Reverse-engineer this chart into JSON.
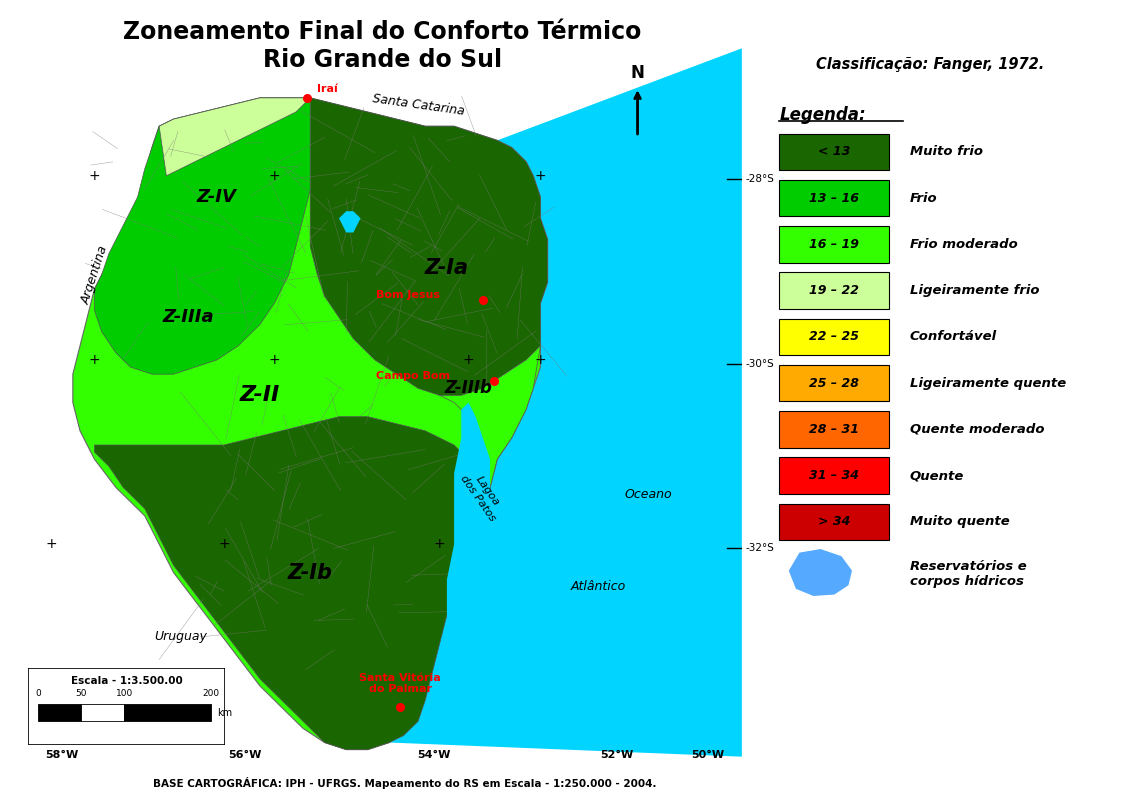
{
  "title_line1": "Zoneamento Final do Conforto Térmico",
  "title_line2": "Rio Grande do Sul",
  "title_fontsize": 17,
  "background_color": "#ffffff",
  "map_bg_color": "#c8c8c8",
  "ocean_color": "#00d4ff",
  "classification_title": "Classificação: Fanger, 1972.",
  "legend_title": "Legenda:",
  "legend_items": [
    {
      "range": "< 13",
      "color": "#1a6600",
      "label": "Muito frio"
    },
    {
      "range": "13 – 16",
      "color": "#00cc00",
      "label": "Frio"
    },
    {
      "range": "16 – 19",
      "color": "#33ff00",
      "label": "Frio moderado"
    },
    {
      "range": "19 – 22",
      "color": "#ccff99",
      "label": "Ligeiramente frio"
    },
    {
      "range": "22 – 25",
      "color": "#ffff00",
      "label": "Confortável"
    },
    {
      "range": "25 – 28",
      "color": "#ffaa00",
      "label": "Ligeiramente quente"
    },
    {
      "range": "28 – 31",
      "color": "#ff6600",
      "label": "Quente moderado"
    },
    {
      "range": "31 – 34",
      "color": "#ff0000",
      "label": "Quente"
    },
    {
      "range": "> 34",
      "color": "#cc0000",
      "label": "Muito quente"
    }
  ],
  "reserv_label": "Reservatórios e\ncorpos hídricos",
  "reserv_color": "#55aaff",
  "scale_text": "Escala - 1:3.500.00",
  "base_text": "BASE CARTOGRÁFICA: IPH - UFRGS. Mapeamento do RS em Escala - 1:250.000 - 2004."
}
